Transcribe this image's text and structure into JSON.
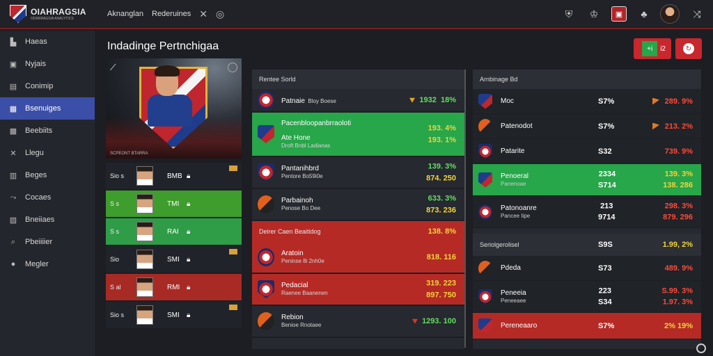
{
  "app": {
    "title": "OIAHRAGSIA",
    "subtitle": "ODARRAGSIA ANALYTICS"
  },
  "topnav": {
    "items": [
      "Aknanglan",
      "Rederuines"
    ]
  },
  "sidebar": {
    "items": [
      {
        "label": "Haeas",
        "icon": "home-icon",
        "glyph": "▙"
      },
      {
        "label": "Nyjais",
        "icon": "mail-icon",
        "glyph": "▣"
      },
      {
        "label": "Conimip",
        "icon": "briefcase-icon",
        "glyph": "▤"
      },
      {
        "label": "Bsenuiges",
        "icon": "stats-icon",
        "glyph": "▦",
        "active": true
      },
      {
        "label": "Beebiits",
        "icon": "message-icon",
        "glyph": "▩"
      },
      {
        "label": "Llegu",
        "icon": "tools-icon",
        "glyph": "✕"
      },
      {
        "label": "Beges",
        "icon": "chat-icon",
        "glyph": "▥"
      },
      {
        "label": "Cocaes",
        "icon": "share-icon",
        "glyph": "⤳"
      },
      {
        "label": "Bneiiaes",
        "icon": "table-icon",
        "glyph": "▧"
      },
      {
        "label": "Pbeiiiier",
        "icon": "search-icon",
        "glyph": "⌕"
      },
      {
        "label": "Megler",
        "icon": "info-icon",
        "glyph": "●"
      }
    ]
  },
  "page": {
    "title": "Indadinge Pertnchigaa"
  },
  "header_buttons": {
    "primary_label": "+i",
    "secondary_label": "i2"
  },
  "player": {
    "caption": "SCPEONT BTARRA"
  },
  "player_list": [
    {
      "label": "Sio s",
      "value": "BMB",
      "style": "dark"
    },
    {
      "label": "S s",
      "value": "TMI",
      "style": "green"
    },
    {
      "label": "S s",
      "value": "RAI",
      "style": "green2"
    },
    {
      "label": "Sio",
      "value": "SMI",
      "style": "dark"
    },
    {
      "label": "S al",
      "value": "RMI",
      "style": "red"
    },
    {
      "label": "Sio s",
      "value": "SMI",
      "style": "dark"
    }
  ],
  "middle": {
    "header": "Rentee Sorld",
    "rows": [
      {
        "name": "Patnaie",
        "sub": "Bloy Boese",
        "s1": "1932",
        "s2": "18%",
        "style": "dark"
      },
      {
        "name": "Pacenbloopanbrraoloti",
        "name2": "Ate Hone",
        "sub": "Droft Bnbl Ladianas",
        "s1": "193. 4%",
        "s2": "193. 1%",
        "style": "green"
      },
      {
        "name": "Pantanihbrd",
        "sub": "Pentore Bo59i0e",
        "s1": "139. 3%",
        "s2": "874. 250",
        "style": "dark"
      },
      {
        "name": "Parbainoh",
        "sub": "Penose Bo Dee",
        "s1": "633. 3%",
        "s2": "873. 236",
        "style": "dark"
      }
    ],
    "section2_header": "Deirer Caen Beaitidog",
    "section2_stats": "138. 8%",
    "rows2": [
      {
        "name": "Aratoin",
        "sub": "Peninse 8i 2nh0e",
        "s1": "818. 116",
        "style": "red"
      },
      {
        "name": "Pedacial",
        "sub": "Raenee Baanenen",
        "s1": "319. 223",
        "s2": "897. 750",
        "style": "red"
      },
      {
        "name": "Rebion",
        "sub": "Benioe Rnotaee",
        "s1": "1293. 100",
        "style": "dark"
      }
    ]
  },
  "right": {
    "header": "Arnbinage Bd",
    "rows": [
      {
        "name": "Moc",
        "sub": "",
        "pct": "S7%",
        "val": "289. 9%",
        "style": "dark"
      },
      {
        "name": "Patenodot",
        "sub": "",
        "pct": "S7%",
        "val": "213. 2%",
        "style": "dark"
      },
      {
        "name": "Patarite",
        "sub": "",
        "pct": "S32",
        "val": "739. 9%",
        "style": "dark"
      },
      {
        "name": "Penoeral",
        "sub": "Panenoae",
        "pct": "2334",
        "pct2": "S714",
        "val": "139. 3%",
        "val2": "138. 286",
        "style": "green"
      },
      {
        "name": "Patonoanre",
        "sub": "Pancee tipe",
        "pct": "213",
        "pct2": "9714",
        "val": "298. 3%",
        "val2": "879. 296",
        "style": "dark"
      }
    ],
    "section2_header": "Seriolgerolisel",
    "section2_pct": "S9S",
    "section2_val": "1.99, 2%",
    "rows2": [
      {
        "name": "Pdeda",
        "sub": "",
        "pct": "S73",
        "val": "489. 9%",
        "style": "dark"
      },
      {
        "name": "Peneeia",
        "sub": "Peneeaee",
        "pct": "223",
        "pct2": "S34",
        "val": "S.99. 3%",
        "val2": "1.97. 3%",
        "style": "dark"
      },
      {
        "name": "Pereneaaro",
        "sub": "",
        "pct": "S7%",
        "val": "2% 19%",
        "style": "red"
      }
    ]
  }
}
